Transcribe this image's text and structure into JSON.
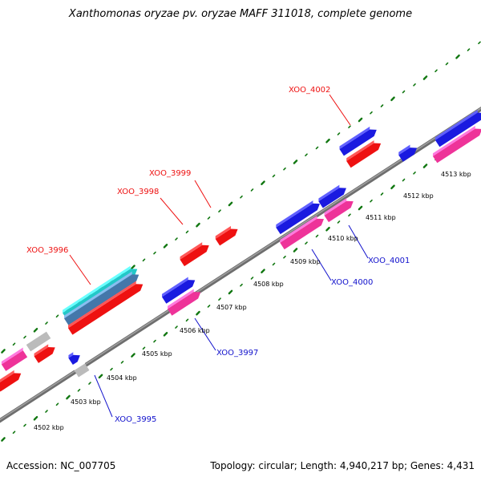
{
  "title": "Xanthomonas oryzae pv. oryzae MAFF 311018, complete genome",
  "footer": {
    "accession": "Accession: NC_007705",
    "stats": "Topology: circular; Length: 4,940,217 bp; Genes: 4,431"
  },
  "colors": {
    "backbone": "#808080",
    "tick": "#117711",
    "cds_forward": "#1a1ae0",
    "cds_reverse_pink": "#ee3399",
    "cds_red": "#ee1111",
    "cds_cyan": "#22c8c8",
    "cds_steel": "#4477aa",
    "cds_gray": "#bbbbbb",
    "label_red": "#ee1111",
    "label_blue": "#1111cc"
  },
  "ticks": [
    "4502 kbp",
    "4503 kbp",
    "4504 kbp",
    "4505 kbp",
    "4506 kbp",
    "4507 kbp",
    "4508 kbp",
    "4509 kbp",
    "4510 kbp",
    "4511 kbp",
    "4512 kbp",
    "4513 kbp"
  ],
  "gene_labels_top": [
    "XOO_3996",
    "XOO_3998",
    "XOO_3999",
    "XOO_4002"
  ],
  "gene_labels_bottom": [
    "XOO_3995",
    "XOO_3997",
    "XOO_4000",
    "XOO_4001"
  ]
}
